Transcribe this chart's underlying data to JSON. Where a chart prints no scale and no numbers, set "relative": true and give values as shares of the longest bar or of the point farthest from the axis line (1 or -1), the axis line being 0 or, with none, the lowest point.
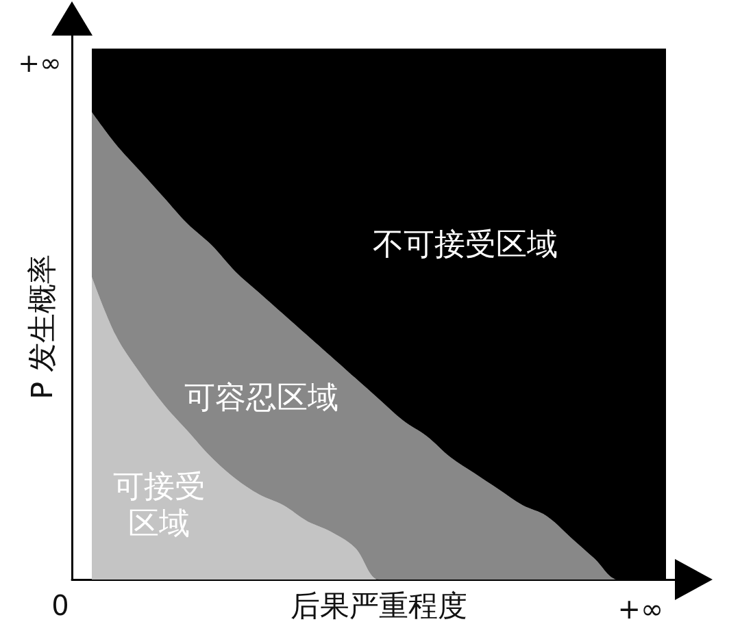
{
  "chart_data": {
    "type": "area",
    "stacked": true,
    "relative": true,
    "xlabel": "后果严重程度",
    "ylabel": "P 发生概率",
    "annotations": [
      "+∞",
      "0",
      "+∞"
    ],
    "categories": [
      null,
      null,
      null,
      null,
      null,
      null,
      null,
      null,
      null,
      null,
      null,
      null,
      null,
      null,
      null,
      null,
      null,
      null,
      null,
      null,
      null,
      null,
      null,
      null,
      null
    ],
    "series": [
      {
        "name": "可接受区域",
        "color": "#c4c4c4",
        "values": [
          0.57,
          0.46,
          0.39,
          0.33,
          0.28,
          0.23,
          0.19,
          0.16,
          0.14,
          0.11,
          0.09,
          0.06,
          0,
          0,
          0,
          0,
          0,
          0,
          0,
          0,
          0,
          0,
          0,
          0,
          0
        ]
      },
      {
        "name": "可容忍区域",
        "color": "#888888",
        "values": [
          0.31,
          0.36,
          0.38,
          0.39,
          0.39,
          0.4,
          0.39,
          0.38,
          0.36,
          0.35,
          0.33,
          0.32,
          0.34,
          0.3,
          0.27,
          0.23,
          0.2,
          0.17,
          0.14,
          0.12,
          0.08,
          0.04,
          0,
          0,
          0
        ]
      },
      {
        "name": "不可接受区域",
        "color": "#000000",
        "values": [
          0.12,
          0.18,
          0.23,
          0.28,
          0.33,
          0.37,
          0.42,
          0.46,
          0.5,
          0.54,
          0.58,
          0.62,
          0.66,
          0.7,
          0.73,
          0.77,
          0.8,
          0.83,
          0.86,
          0.88,
          0.92,
          0.96,
          1,
          1,
          1
        ]
      }
    ]
  }
}
